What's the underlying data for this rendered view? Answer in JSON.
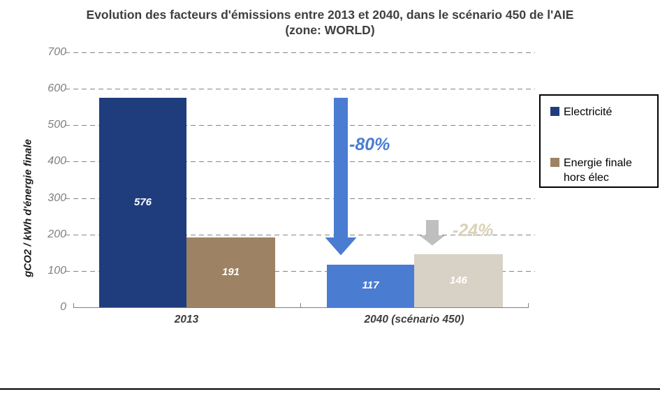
{
  "title": {
    "line1": "Evolution des facteurs d'émissions entre 2013 et 2040, dans le scénario 450 de l'AIE",
    "line2": "(zone: WORLD)"
  },
  "chart_data": {
    "type": "bar",
    "title": "Evolution des facteurs d'émissions entre 2013 et 2040, dans le scénario 450 de l'AIE (zone: WORLD)",
    "xlabel": "",
    "ylabel": "gCO2 / kWh d'énergie finale",
    "categories": [
      "2013",
      "2040 (scénario 450)"
    ],
    "series": [
      {
        "name": "Electricité",
        "values": [
          576,
          117
        ],
        "colors": [
          "#1F3D7C",
          "#4A7CD2"
        ]
      },
      {
        "name": "Energie finale hors élec",
        "values": [
          191,
          146
        ],
        "colors": [
          "#9E8264",
          "#D8D1C6"
        ]
      }
    ],
    "ylim": [
      0,
      700
    ],
    "y_ticks": [
      0,
      100,
      200,
      300,
      400,
      500,
      600,
      700
    ],
    "grid": "horizontal-dashed",
    "legend_position": "right",
    "bar_value_labels": true
  },
  "legend": {
    "items": [
      {
        "label": "Electricité",
        "color": "#1F3D7C"
      },
      {
        "label": "Energie finale hors élec",
        "color": "#9E8264"
      }
    ]
  },
  "annotations": [
    {
      "label": "-80%",
      "series": "Electricité",
      "text_color": "#4A7CD2",
      "arrow_color": "#4A7CD2"
    },
    {
      "label": "-24%",
      "series": "Energie finale hors élec",
      "text_color": "#D9D2B7",
      "arrow_color": "#BFBFBF"
    }
  ],
  "colors": {
    "axis": "#7F7F7F",
    "gridline": "#848484",
    "title_text": "#3F3F3F",
    "bottom_rule": "#000000"
  }
}
